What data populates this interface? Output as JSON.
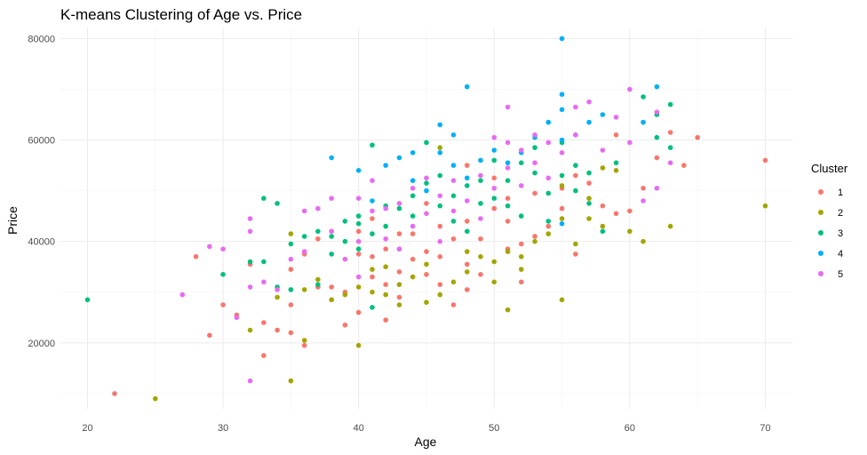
{
  "chart_data": {
    "type": "scatter",
    "title": "K-means Clustering of Age vs. Price",
    "xlabel": "Age",
    "ylabel": "Price",
    "xlim": [
      18,
      72
    ],
    "ylim": [
      7000,
      82000
    ],
    "x_ticks": [
      20,
      30,
      40,
      50,
      60,
      70
    ],
    "y_ticks": [
      20000,
      40000,
      60000,
      80000
    ],
    "grid": true,
    "legend": {
      "title": "Cluster",
      "position": "right"
    },
    "series": [
      {
        "name": "1",
        "color": "#F8766D",
        "points": [
          [
            22,
            10000
          ],
          [
            28,
            37000
          ],
          [
            29,
            21500
          ],
          [
            30,
            27500
          ],
          [
            31,
            25500
          ],
          [
            32,
            35500
          ],
          [
            33,
            24000
          ],
          [
            33,
            17500
          ],
          [
            34,
            22500
          ],
          [
            35,
            27500
          ],
          [
            35,
            22000
          ],
          [
            35,
            34500
          ],
          [
            36,
            19500
          ],
          [
            36,
            37500
          ],
          [
            37,
            40500
          ],
          [
            37,
            31000
          ],
          [
            38,
            28500
          ],
          [
            38,
            31000
          ],
          [
            38,
            42000
          ],
          [
            39,
            23500
          ],
          [
            39,
            30000
          ],
          [
            40,
            26000
          ],
          [
            40,
            37500
          ],
          [
            40,
            42000
          ],
          [
            41,
            33000
          ],
          [
            41,
            37000
          ],
          [
            41,
            44500
          ],
          [
            42,
            24500
          ],
          [
            42,
            31500
          ],
          [
            42,
            38500
          ],
          [
            43,
            29000
          ],
          [
            43,
            34000
          ],
          [
            43,
            41500
          ],
          [
            44,
            36500
          ],
          [
            44,
            41500
          ],
          [
            45,
            33500
          ],
          [
            45,
            38000
          ],
          [
            45,
            47500
          ],
          [
            46,
            31500
          ],
          [
            46,
            37000
          ],
          [
            46,
            43000
          ],
          [
            47,
            27500
          ],
          [
            47,
            40500
          ],
          [
            48,
            30500
          ],
          [
            48,
            35500
          ],
          [
            48,
            44000
          ],
          [
            48,
            55000
          ],
          [
            49,
            33500
          ],
          [
            49,
            40500
          ],
          [
            50,
            46500
          ],
          [
            50,
            52500
          ],
          [
            51,
            38500
          ],
          [
            51,
            44000
          ],
          [
            51,
            48500
          ],
          [
            52,
            32000
          ],
          [
            52,
            39500
          ],
          [
            53,
            41000
          ],
          [
            53,
            49500
          ],
          [
            54,
            43000
          ],
          [
            55,
            46500
          ],
          [
            55,
            50500
          ],
          [
            56,
            37500
          ],
          [
            56,
            53000
          ],
          [
            57,
            51500
          ],
          [
            58,
            47000
          ],
          [
            59,
            45500
          ],
          [
            59,
            61000
          ],
          [
            60,
            46000
          ],
          [
            61,
            50500
          ],
          [
            62,
            56500
          ],
          [
            63,
            61500
          ],
          [
            64,
            55000
          ],
          [
            65,
            60500
          ],
          [
            70,
            56000
          ]
        ]
      },
      {
        "name": "2",
        "color": "#A3A500",
        "points": [
          [
            25,
            9000
          ],
          [
            32,
            22500
          ],
          [
            34,
            29000
          ],
          [
            35,
            12500
          ],
          [
            35,
            41500
          ],
          [
            36,
            20500
          ],
          [
            36,
            30500
          ],
          [
            37,
            32500
          ],
          [
            38,
            28500
          ],
          [
            39,
            29500
          ],
          [
            40,
            19500
          ],
          [
            40,
            31000
          ],
          [
            41,
            30000
          ],
          [
            41,
            34500
          ],
          [
            42,
            29500
          ],
          [
            42,
            35000
          ],
          [
            43,
            27500
          ],
          [
            43,
            31500
          ],
          [
            44,
            33000
          ],
          [
            45,
            28000
          ],
          [
            45,
            35500
          ],
          [
            46,
            29500
          ],
          [
            46,
            58500
          ],
          [
            47,
            32000
          ],
          [
            48,
            34000
          ],
          [
            48,
            38000
          ],
          [
            49,
            37000
          ],
          [
            50,
            32000
          ],
          [
            50,
            36000
          ],
          [
            51,
            26500
          ],
          [
            51,
            38000
          ],
          [
            52,
            34500
          ],
          [
            52,
            37000
          ],
          [
            53,
            40000
          ],
          [
            54,
            41500
          ],
          [
            55,
            28500
          ],
          [
            55,
            44500
          ],
          [
            55,
            51000
          ],
          [
            56,
            39500
          ],
          [
            57,
            44500
          ],
          [
            57,
            48500
          ],
          [
            58,
            43000
          ],
          [
            58,
            54500
          ],
          [
            59,
            54000
          ],
          [
            60,
            42000
          ],
          [
            61,
            40000
          ],
          [
            63,
            43000
          ],
          [
            70,
            47000
          ]
        ]
      },
      {
        "name": "3",
        "color": "#00BF7D",
        "points": [
          [
            20,
            28500
          ],
          [
            30,
            33500
          ],
          [
            32,
            36000
          ],
          [
            33,
            48500
          ],
          [
            33,
            36000
          ],
          [
            34,
            47500
          ],
          [
            34,
            31000
          ],
          [
            35,
            30500
          ],
          [
            35,
            39500
          ],
          [
            36,
            41000
          ],
          [
            37,
            42000
          ],
          [
            37,
            31500
          ],
          [
            38,
            37500
          ],
          [
            38,
            41000
          ],
          [
            39,
            44000
          ],
          [
            39,
            40000
          ],
          [
            40,
            38500
          ],
          [
            40,
            43500
          ],
          [
            40,
            45000
          ],
          [
            41,
            59000
          ],
          [
            41,
            41500
          ],
          [
            41,
            27000
          ],
          [
            42,
            47000
          ],
          [
            42,
            43000
          ],
          [
            43,
            46500
          ],
          [
            43,
            38500
          ],
          [
            44,
            45000
          ],
          [
            44,
            49000
          ],
          [
            45,
            59500
          ],
          [
            45,
            51500
          ],
          [
            46,
            47000
          ],
          [
            46,
            53000
          ],
          [
            47,
            49000
          ],
          [
            47,
            44000
          ],
          [
            48,
            51000
          ],
          [
            48,
            42000
          ],
          [
            49,
            52000
          ],
          [
            49,
            47500
          ],
          [
            50,
            56000
          ],
          [
            50,
            48500
          ],
          [
            51,
            52000
          ],
          [
            51,
            47000
          ],
          [
            52,
            55500
          ],
          [
            52,
            45000
          ],
          [
            53,
            58500
          ],
          [
            53,
            53500
          ],
          [
            54,
            44000
          ],
          [
            54,
            49500
          ],
          [
            55,
            59500
          ],
          [
            55,
            53000
          ],
          [
            56,
            50000
          ],
          [
            56,
            55000
          ],
          [
            57,
            47500
          ],
          [
            57,
            53500
          ],
          [
            58,
            42000
          ],
          [
            59,
            55500
          ],
          [
            61,
            68500
          ],
          [
            62,
            60500
          ],
          [
            62,
            65000
          ],
          [
            63,
            67000
          ],
          [
            63,
            58500
          ]
        ]
      },
      {
        "name": "4",
        "color": "#00B0F6",
        "points": [
          [
            38,
            56500
          ],
          [
            40,
            54000
          ],
          [
            41,
            48000
          ],
          [
            42,
            55000
          ],
          [
            43,
            56500
          ],
          [
            44,
            52000
          ],
          [
            44,
            57500
          ],
          [
            45,
            50000
          ],
          [
            46,
            63000
          ],
          [
            46,
            57500
          ],
          [
            47,
            55000
          ],
          [
            47,
            61000
          ],
          [
            48,
            70500
          ],
          [
            48,
            52500
          ],
          [
            49,
            56000
          ],
          [
            50,
            58000
          ],
          [
            51,
            55500
          ],
          [
            52,
            57500
          ],
          [
            53,
            60500
          ],
          [
            54,
            63500
          ],
          [
            55,
            80000
          ],
          [
            55,
            69000
          ],
          [
            55,
            66000
          ],
          [
            55,
            60000
          ],
          [
            55,
            43500
          ],
          [
            56,
            61000
          ],
          [
            57,
            63500
          ],
          [
            58,
            65000
          ],
          [
            61,
            63500
          ],
          [
            62,
            70500
          ]
        ]
      },
      {
        "name": "5",
        "color": "#E76BF3",
        "points": [
          [
            27,
            29500
          ],
          [
            29,
            39000
          ],
          [
            30,
            38500
          ],
          [
            31,
            25000
          ],
          [
            32,
            12500
          ],
          [
            32,
            31000
          ],
          [
            32,
            44500
          ],
          [
            32,
            42000
          ],
          [
            33,
            32000
          ],
          [
            34,
            30500
          ],
          [
            35,
            36500
          ],
          [
            36,
            46000
          ],
          [
            36,
            38000
          ],
          [
            37,
            46500
          ],
          [
            38,
            48500
          ],
          [
            38,
            42000
          ],
          [
            39,
            36500
          ],
          [
            40,
            48500
          ],
          [
            40,
            40000
          ],
          [
            40,
            33000
          ],
          [
            41,
            52000
          ],
          [
            41,
            46000
          ],
          [
            42,
            46500
          ],
          [
            42,
            40500
          ],
          [
            43,
            47500
          ],
          [
            43,
            38500
          ],
          [
            44,
            50500
          ],
          [
            44,
            43000
          ],
          [
            45,
            52500
          ],
          [
            45,
            45500
          ],
          [
            46,
            49000
          ],
          [
            46,
            40000
          ],
          [
            47,
            52000
          ],
          [
            47,
            46000
          ],
          [
            48,
            48000
          ],
          [
            49,
            53000
          ],
          [
            49,
            44500
          ],
          [
            50,
            60500
          ],
          [
            50,
            50500
          ],
          [
            51,
            66500
          ],
          [
            51,
            59500
          ],
          [
            51,
            54500
          ],
          [
            52,
            58000
          ],
          [
            52,
            51000
          ],
          [
            53,
            61000
          ],
          [
            53,
            55500
          ],
          [
            54,
            59500
          ],
          [
            54,
            52500
          ],
          [
            55,
            57500
          ],
          [
            56,
            66500
          ],
          [
            56,
            61000
          ],
          [
            57,
            67500
          ],
          [
            58,
            58000
          ],
          [
            59,
            64500
          ],
          [
            60,
            70000
          ],
          [
            60,
            59500
          ],
          [
            61,
            48000
          ],
          [
            62,
            65500
          ],
          [
            62,
            50500
          ],
          [
            63,
            55500
          ]
        ]
      }
    ]
  }
}
